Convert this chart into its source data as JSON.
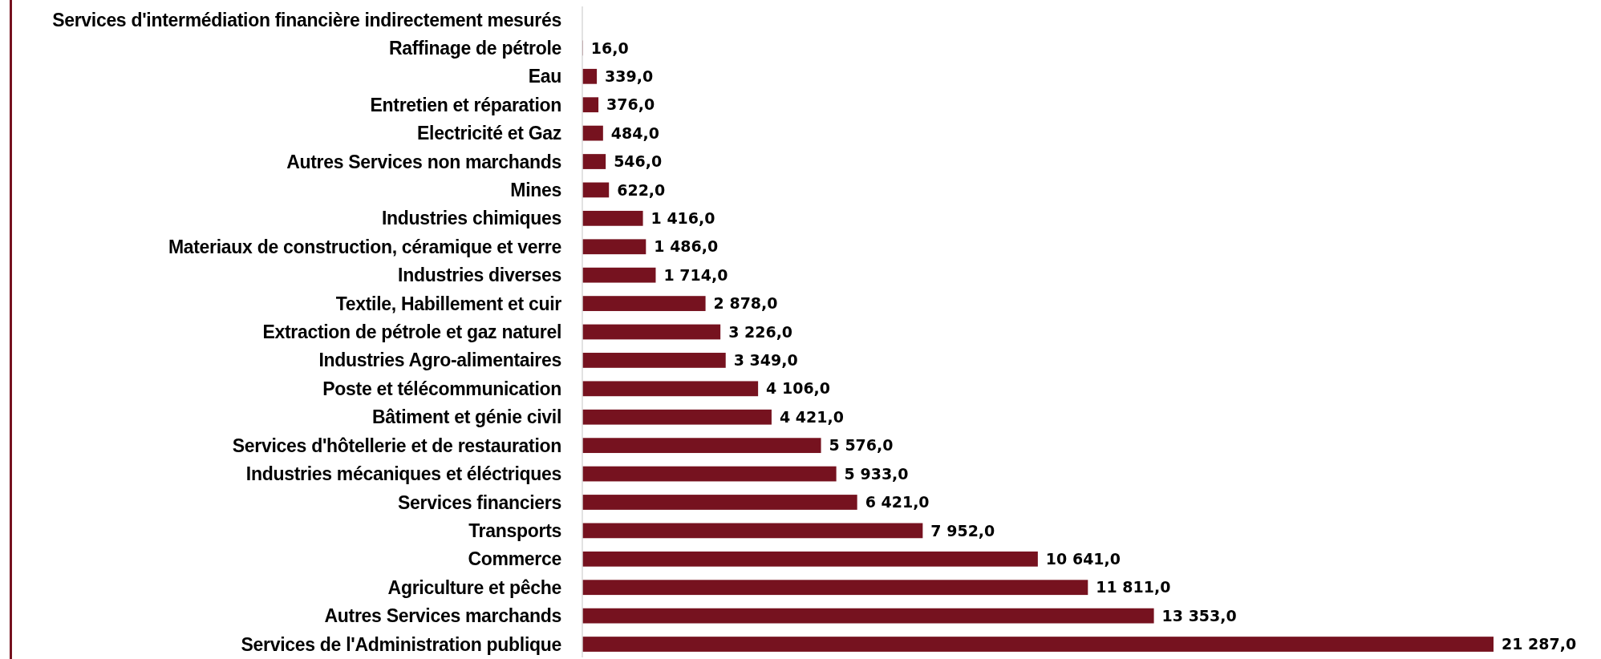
{
  "chart_data": {
    "type": "bar",
    "orientation": "horizontal",
    "categories": [
      "Services d'intermédiation financière indirectement mesurés",
      "Raffinage de pétrole",
      "Eau",
      "Entretien et réparation",
      "Electricité et Gaz",
      "Autres Services non marchands",
      "Mines",
      "Industries chimiques",
      "Materiaux de construction, céramique et verre",
      "Industries diverses",
      "Textile, Habillement et cuir",
      "Extraction de pétrole  et gaz naturel",
      "Industries Agro-alimentaires",
      "Poste et télécommunication",
      "Bâtiment et génie civil",
      "Services d'hôtellerie et de restauration",
      "Industries mécaniques et éléctriques",
      "Services financiers",
      "Transports",
      "Commerce",
      "Agriculture et pêche",
      "Autres Services marchands",
      "Services de l'Administration publique"
    ],
    "values": [
      null,
      16,
      339,
      376,
      484,
      546,
      622,
      1416,
      1486,
      1714,
      2878,
      3226,
      3349,
      4106,
      4421,
      5576,
      5933,
      6421,
      7952,
      10641,
      11811,
      13353,
      21287
    ],
    "value_labels": [
      null,
      "16,0",
      "339,0",
      "376,0",
      "484,0",
      "546,0",
      "622,0",
      "1 416,0",
      "1 486,0",
      "1 714,0",
      "2 878,0",
      "3 226,0",
      "3 349,0",
      "4 106,0",
      "4 421,0",
      "5 576,0",
      "5 933,0",
      "6 421,0",
      "7 952,0",
      "10 641,0",
      "11 811,0",
      "13 353,0",
      "21 287,0"
    ],
    "color": "#76121f"
  }
}
